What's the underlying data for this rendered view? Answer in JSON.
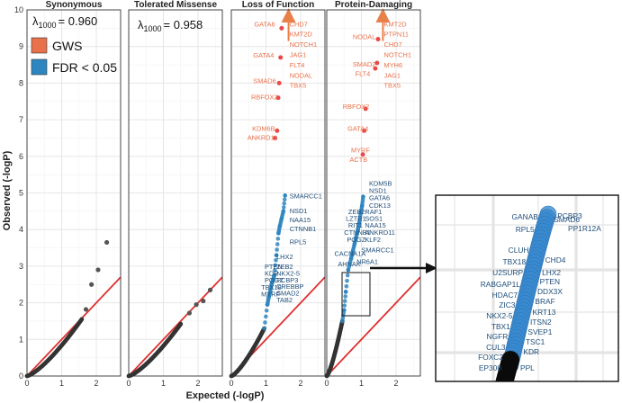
{
  "chart_data": {
    "type": "scatter",
    "xlabel": "Expected (-logP)",
    "ylabel": "Observed (-logP)",
    "xlim": [
      0,
      2.7
    ],
    "ylim": [
      0,
      10
    ],
    "x_ticks": [
      "0",
      "1",
      "2"
    ],
    "y_ticks": [
      "0",
      "1",
      "2",
      "3",
      "4",
      "5",
      "6",
      "7",
      "8",
      "9",
      "10"
    ],
    "grid": true,
    "colors": {
      "gws": "#e8704a",
      "fdr": "#2e86c1",
      "null": "#333333",
      "diagonal": "#e03030",
      "arrow": "#e8804a"
    },
    "legend": {
      "placement": "top-left",
      "items": [
        {
          "label": "GWS",
          "color": "#e8704a"
        },
        {
          "label": "FDR < 0.05",
          "color": "#2e86c1"
        }
      ]
    },
    "panels": [
      {
        "title": "Synonymous",
        "lambda_prefix": "λ",
        "lambda_sub": "1000",
        "lambda_value": "= 0.960",
        "bulk_max": [
          1.58,
          1.55
        ],
        "points": [
          [
            1.7,
            1.82
          ],
          [
            1.86,
            2.5
          ],
          [
            2.05,
            2.9
          ],
          [
            2.3,
            3.65
          ]
        ],
        "labels": []
      },
      {
        "title": "Tolerated Missense",
        "lambda_prefix": "λ",
        "lambda_sub": "1000",
        "lambda_value": "= 0.958",
        "bulk_max": [
          1.5,
          1.42
        ],
        "points": [
          [
            1.75,
            1.72
          ],
          [
            1.95,
            1.95
          ],
          [
            2.35,
            2.35
          ],
          [
            2.15,
            2.05
          ]
        ],
        "labels": []
      },
      {
        "title": "Loss of Function",
        "bulk_max": [
          0.95,
          1.3
        ],
        "points_fdr": [
          [
            1.04,
            1.95
          ],
          [
            1.08,
            2.15
          ],
          [
            1.12,
            2.3
          ],
          [
            1.16,
            2.5
          ],
          [
            1.2,
            2.62
          ],
          [
            1.24,
            2.75
          ],
          [
            1.3,
            3.3
          ],
          [
            1.36,
            3.9
          ],
          [
            1.4,
            4.1
          ],
          [
            1.45,
            4.3
          ],
          [
            1.5,
            4.5
          ],
          [
            1.55,
            4.93
          ]
        ],
        "points_gws": [
          [
            1.26,
            6.5
          ],
          [
            1.32,
            6.7
          ],
          [
            1.35,
            7.6
          ],
          [
            1.38,
            8.0
          ],
          [
            1.42,
            8.7
          ],
          [
            1.45,
            9.5
          ]
        ],
        "arrow": [
          1.65,
          10
        ],
        "labels": [
          {
            "text": "GATA6",
            "x": 0.66,
            "y": 9.55,
            "type": "gws"
          },
          {
            "text": "CHD7",
            "x": 1.68,
            "y": 9.55,
            "type": "gws"
          },
          {
            "text": "KMT2D",
            "x": 1.68,
            "y": 9.27,
            "type": "gws"
          },
          {
            "text": "NOTCH1",
            "x": 1.68,
            "y": 8.99,
            "type": "gws"
          },
          {
            "text": "JAG1",
            "x": 1.68,
            "y": 8.71,
            "type": "gws"
          },
          {
            "text": "FLT4",
            "x": 1.68,
            "y": 8.43,
            "type": "gws"
          },
          {
            "text": "NODAL",
            "x": 1.68,
            "y": 8.15,
            "type": "gws"
          },
          {
            "text": "TBX5",
            "x": 1.68,
            "y": 7.87,
            "type": "gws"
          },
          {
            "text": "GATA4",
            "x": 0.63,
            "y": 8.7,
            "type": "gws"
          },
          {
            "text": "SMAD6",
            "x": 0.63,
            "y": 8.0,
            "type": "gws"
          },
          {
            "text": "RBFOX2",
            "x": 0.57,
            "y": 7.55,
            "type": "gws"
          },
          {
            "text": "KDM6B",
            "x": 0.6,
            "y": 6.7,
            "type": "gws"
          },
          {
            "text": "ANKRD11",
            "x": 0.46,
            "y": 6.45,
            "type": "gws"
          },
          {
            "text": "SMARCC1",
            "x": 1.68,
            "y": 4.85,
            "type": "fdr"
          },
          {
            "text": "NSD1",
            "x": 1.68,
            "y": 4.45,
            "type": "fdr"
          },
          {
            "text": "NAA15",
            "x": 1.68,
            "y": 4.2,
            "type": "fdr"
          },
          {
            "text": "CTNNB1",
            "x": 1.68,
            "y": 3.95,
            "type": "fdr"
          },
          {
            "text": "RPL5",
            "x": 1.68,
            "y": 3.6,
            "type": "fdr"
          },
          {
            "text": "LHX2",
            "x": 1.3,
            "y": 3.2,
            "type": "fdr"
          },
          {
            "text": "PTEN",
            "x": 0.96,
            "y": 2.92,
            "type": "fdr"
          },
          {
            "text": "ZEB2",
            "x": 1.3,
            "y": 2.92,
            "type": "fdr"
          },
          {
            "text": "KDR",
            "x": 0.96,
            "y": 2.74,
            "type": "fdr"
          },
          {
            "text": "NKX2-5",
            "x": 1.3,
            "y": 2.74,
            "type": "fdr"
          },
          {
            "text": "POGZ",
            "x": 0.96,
            "y": 2.56,
            "type": "fdr"
          },
          {
            "text": "PCBP3",
            "x": 1.3,
            "y": 2.56,
            "type": "fdr"
          },
          {
            "text": "TBX18",
            "x": 0.86,
            "y": 2.36,
            "type": "fdr"
          },
          {
            "text": "CREBBP",
            "x": 1.3,
            "y": 2.38,
            "type": "fdr"
          },
          {
            "text": "SMAD2",
            "x": 1.3,
            "y": 2.2,
            "type": "fdr"
          },
          {
            "text": "MYRF",
            "x": 0.86,
            "y": 2.18,
            "type": "fdr"
          },
          {
            "text": "TAB2",
            "x": 1.3,
            "y": 2.02,
            "type": "fdr"
          }
        ]
      },
      {
        "title": "Protein-Damaging",
        "bulk_max": [
          0.45,
          1.5
        ],
        "points_fdr": [
          [
            0.5,
            1.8
          ],
          [
            0.55,
            2.3
          ],
          [
            0.62,
            2.9
          ],
          [
            0.7,
            3.2
          ],
          [
            0.75,
            3.4
          ],
          [
            0.8,
            3.6
          ],
          [
            0.85,
            3.8
          ],
          [
            0.9,
            4.0
          ],
          [
            0.94,
            4.2
          ],
          [
            0.98,
            4.45
          ],
          [
            1.02,
            4.65
          ],
          [
            1.05,
            4.9
          ]
        ],
        "points_gws": [
          [
            1.04,
            6.05
          ],
          [
            1.08,
            6.7
          ],
          [
            1.12,
            7.3
          ],
          [
            1.4,
            8.4
          ],
          [
            1.45,
            8.55
          ],
          [
            1.48,
            9.2
          ]
        ],
        "arrow": [
          1.62,
          10
        ],
        "labels": [
          {
            "text": "KMT2D",
            "x": 1.65,
            "y": 9.55,
            "type": "gws"
          },
          {
            "text": "PTPN11",
            "x": 1.65,
            "y": 9.27,
            "type": "gws"
          },
          {
            "text": "CHD7",
            "x": 1.65,
            "y": 8.99,
            "type": "gws"
          },
          {
            "text": "NOTCH1",
            "x": 1.65,
            "y": 8.71,
            "type": "gws"
          },
          {
            "text": "MYH6",
            "x": 1.65,
            "y": 8.43,
            "type": "gws"
          },
          {
            "text": "JAG1",
            "x": 1.65,
            "y": 8.15,
            "type": "gws"
          },
          {
            "text": "TBX5",
            "x": 1.65,
            "y": 7.87,
            "type": "gws"
          },
          {
            "text": "NODAL",
            "x": 0.75,
            "y": 9.2,
            "type": "gws"
          },
          {
            "text": "SMAD2",
            "x": 0.75,
            "y": 8.45,
            "type": "gws"
          },
          {
            "text": "FLT4",
            "x": 0.82,
            "y": 8.2,
            "type": "gws"
          },
          {
            "text": "RBFOX2",
            "x": 0.46,
            "y": 7.3,
            "type": "gws"
          },
          {
            "text": "GATA4",
            "x": 0.6,
            "y": 6.7,
            "type": "gws"
          },
          {
            "text": "MYRF",
            "x": 0.7,
            "y": 6.1,
            "type": "gws"
          },
          {
            "text": "ACTB",
            "x": 0.66,
            "y": 5.85,
            "type": "gws"
          },
          {
            "text": "KDM5B",
            "x": 1.22,
            "y": 5.2,
            "type": "fdr"
          },
          {
            "text": "NSD1",
            "x": 1.22,
            "y": 5.0,
            "type": "fdr"
          },
          {
            "text": "GATA6",
            "x": 1.22,
            "y": 4.8,
            "type": "fdr"
          },
          {
            "text": "CDK13",
            "x": 1.22,
            "y": 4.6,
            "type": "fdr"
          },
          {
            "text": "ZEB2",
            "x": 0.62,
            "y": 4.42,
            "type": "fdr"
          },
          {
            "text": "RAF1",
            "x": 1.1,
            "y": 4.42,
            "type": "fdr"
          },
          {
            "text": "LZTR1",
            "x": 0.55,
            "y": 4.24,
            "type": "fdr"
          },
          {
            "text": "SOS1",
            "x": 1.1,
            "y": 4.24,
            "type": "fdr"
          },
          {
            "text": "RIT1",
            "x": 0.62,
            "y": 4.06,
            "type": "fdr"
          },
          {
            "text": "NAA15",
            "x": 1.1,
            "y": 4.06,
            "type": "fdr"
          },
          {
            "text": "CTNNB1",
            "x": 0.5,
            "y": 3.86,
            "type": "fdr"
          },
          {
            "text": "ANKRD11",
            "x": 1.1,
            "y": 3.86,
            "type": "fdr"
          },
          {
            "text": "POGZ",
            "x": 0.58,
            "y": 3.66,
            "type": "fdr"
          },
          {
            "text": "KLF2",
            "x": 1.1,
            "y": 3.66,
            "type": "fdr"
          },
          {
            "text": "SMARCC1",
            "x": 1.0,
            "y": 3.38,
            "type": "fdr"
          },
          {
            "text": "CACNA1A",
            "x": 0.22,
            "y": 3.28,
            "type": "fdr"
          },
          {
            "text": "NR6A1",
            "x": 0.86,
            "y": 3.06,
            "type": "fdr"
          },
          {
            "text": "AHNAK",
            "x": 0.32,
            "y": 3.0,
            "type": "fdr"
          }
        ]
      }
    ],
    "inset": {
      "labels_left": [
        "GANAB",
        "RPL5",
        "CLUH",
        "TBX18",
        "U2SURP",
        "RABGAP1L",
        "HDAC7",
        "ZIC3",
        "NKX2-5",
        "TBX1",
        "NGFR",
        "CUL3",
        "FOXC2",
        "EP300"
      ],
      "labels_right": [
        "PCBP3",
        "SMAD6",
        "PP1R12A",
        "CHD4",
        "LHX2",
        "PTEN",
        "DDX3X",
        "BRAF",
        "KRT13",
        "ITSN2",
        "SVEP1",
        "TSC1",
        "KDR",
        "PPL"
      ],
      "labels_left_values": [
        8.2,
        7.9,
        7.5,
        7.2,
        6.9,
        6.6,
        6.4,
        6.2,
        6.0,
        5.8,
        5.6,
        5.4,
        5.2,
        5.0
      ],
      "labels_right_values": [
        8.4,
        8.1,
        7.85,
        7.25,
        6.85,
        6.65,
        6.45,
        6.25,
        6.05,
        5.85,
        5.65,
        5.45,
        5.25,
        5.05
      ]
    }
  }
}
